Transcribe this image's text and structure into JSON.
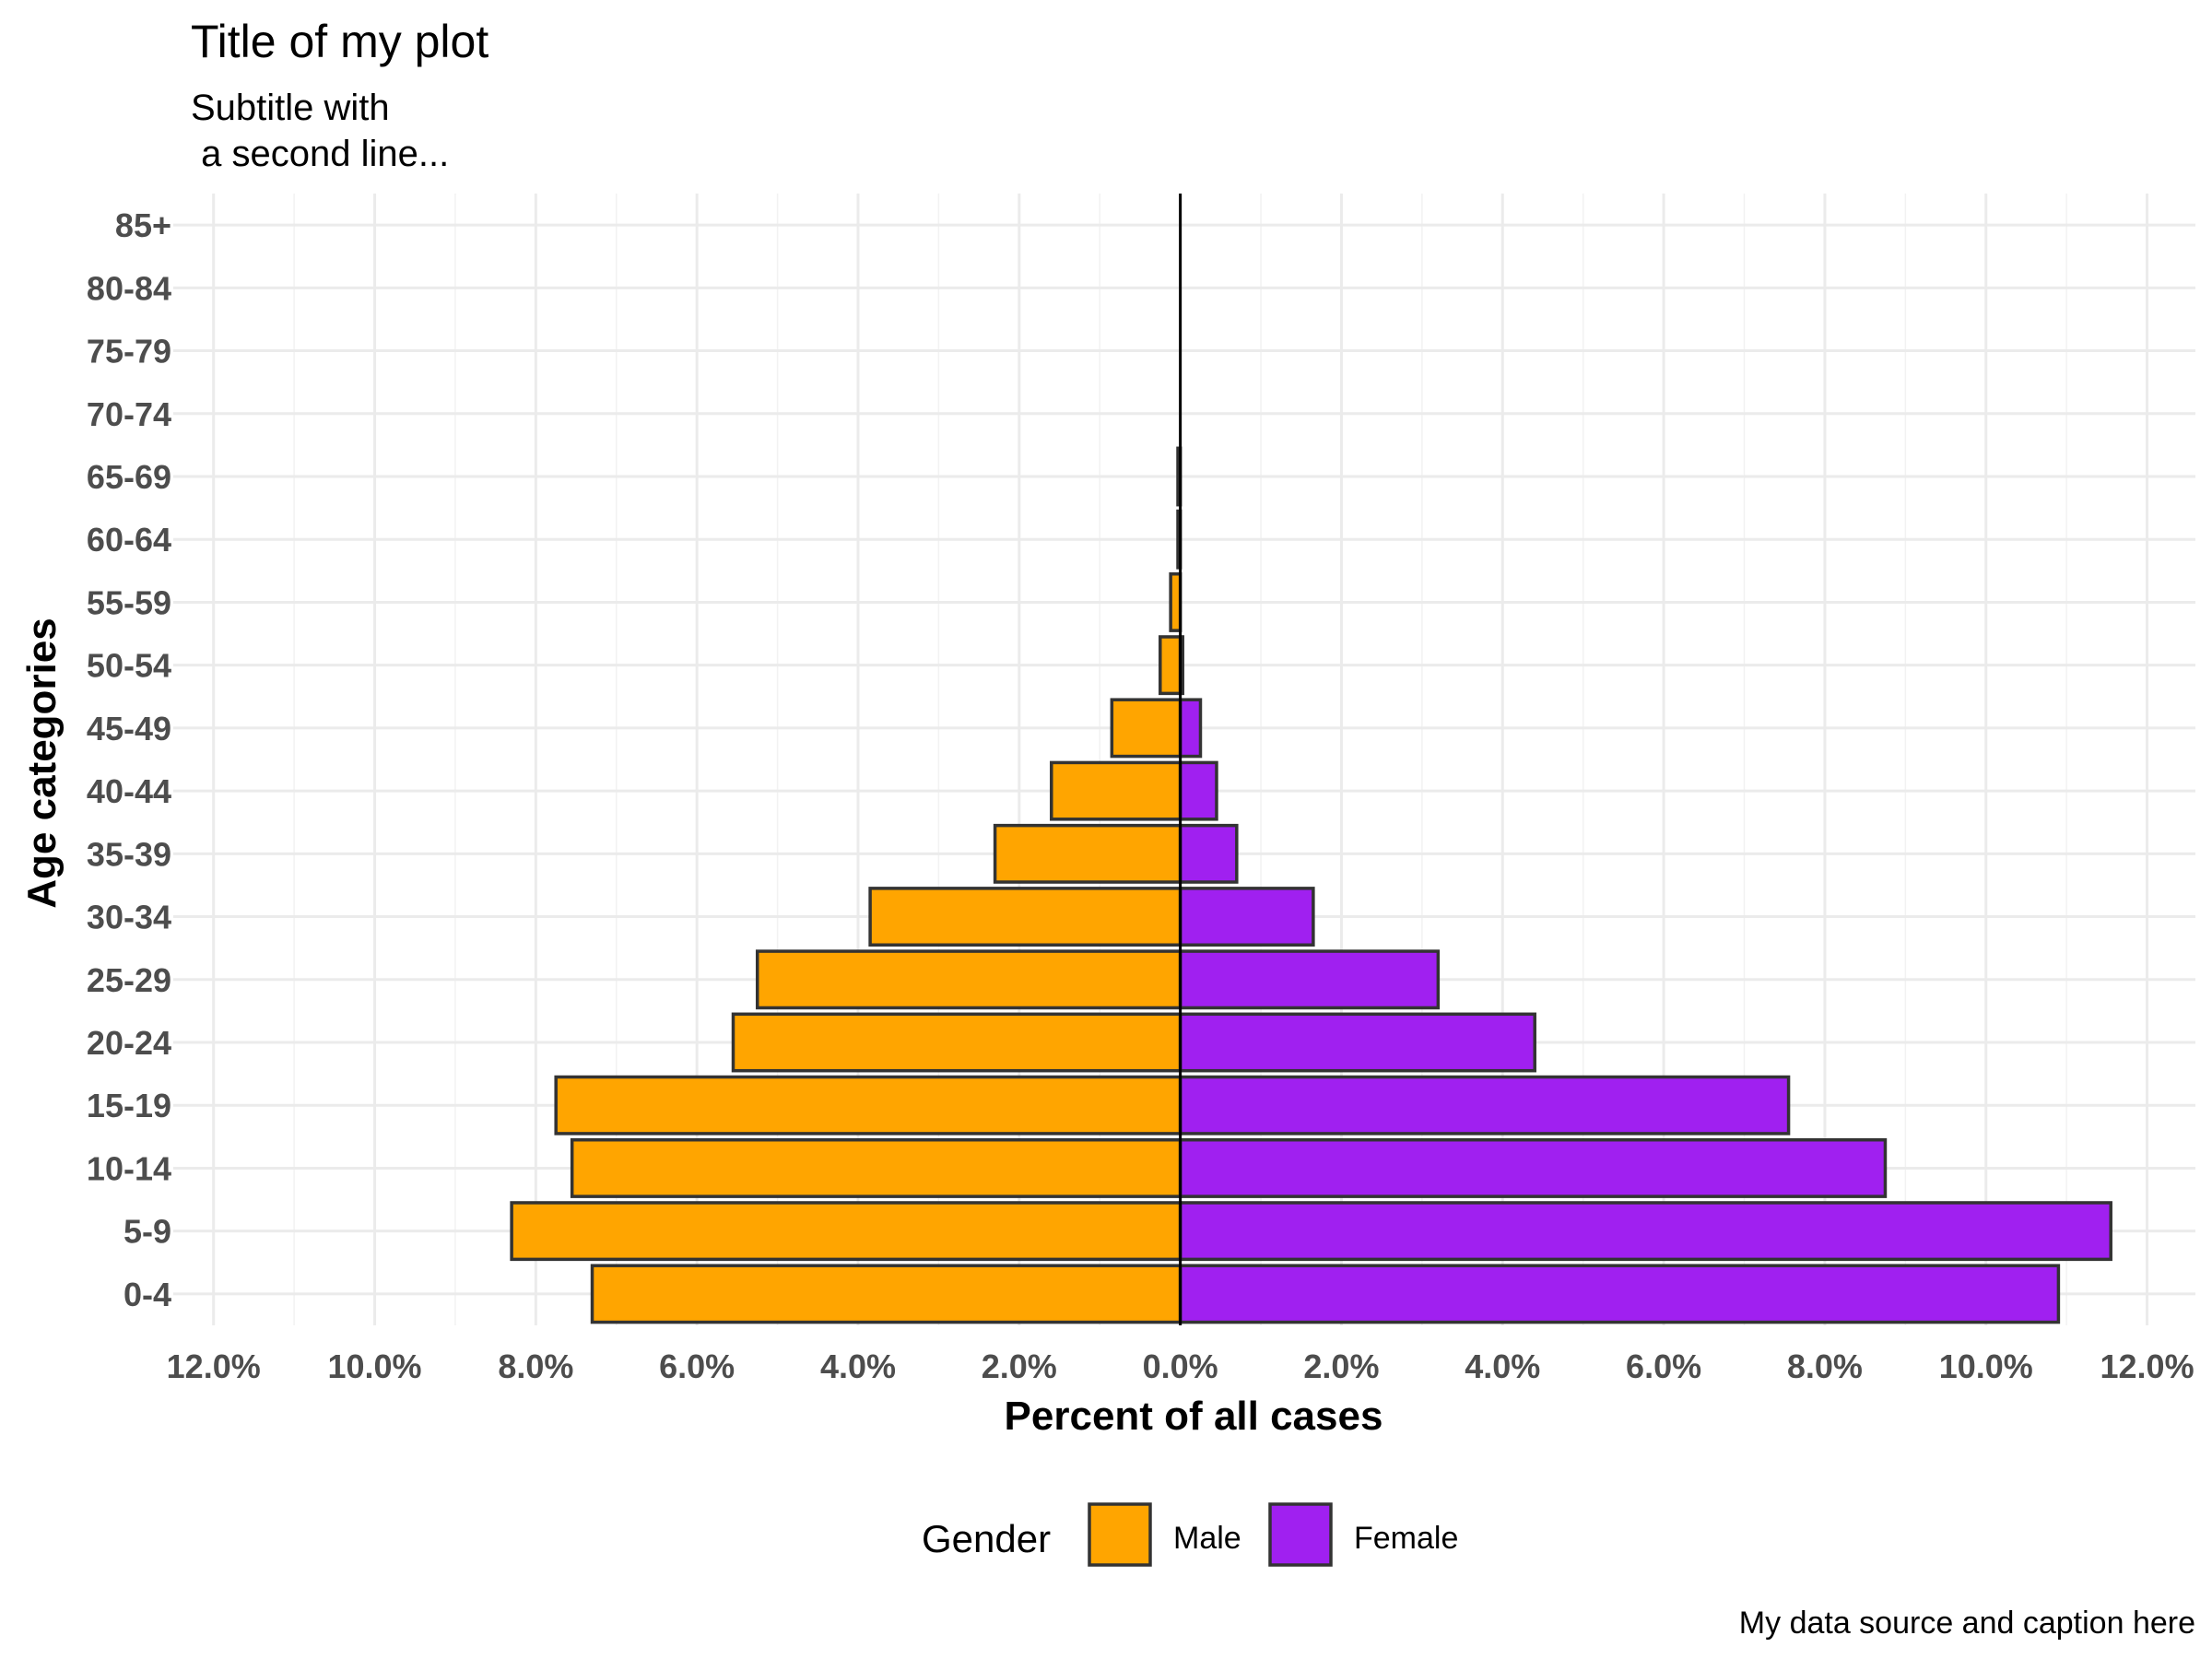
{
  "chart_data": {
    "type": "bar",
    "orientation": "horizontal",
    "layout": "population-pyramid",
    "title": "Title of my plot",
    "subtitle": [
      "Subtitle with",
      " a second line..."
    ],
    "caption": "My data source and caption here",
    "xlabel": "Percent of all cases",
    "ylabel": "Age categories",
    "xlim": [
      -12.5,
      12.6
    ],
    "xticks": [
      -12,
      -10,
      -8,
      -6,
      -4,
      -2,
      0,
      2,
      4,
      6,
      8,
      10,
      12
    ],
    "xtick_labels": [
      "12.0%",
      "10.0%",
      "8.0%",
      "6.0%",
      "4.0%",
      "2.0%",
      "0.0%",
      "2.0%",
      "4.0%",
      "6.0%",
      "8.0%",
      "10.0%",
      "12.0%"
    ],
    "categories": [
      "0-4",
      "5-9",
      "10-14",
      "15-19",
      "20-24",
      "25-29",
      "30-34",
      "35-39",
      "40-44",
      "45-49",
      "50-54",
      "55-59",
      "60-64",
      "65-69",
      "70-74",
      "75-79",
      "80-84",
      "85+"
    ],
    "series": [
      {
        "name": "Male",
        "color": "#FFA500",
        "values": [
          7.3,
          8.3,
          7.55,
          7.75,
          5.55,
          5.25,
          3.85,
          2.3,
          1.6,
          0.85,
          0.25,
          0.12,
          0.03,
          0.03,
          0,
          0,
          0,
          0
        ]
      },
      {
        "name": "Female",
        "color": "#A020F0",
        "values": [
          10.9,
          11.55,
          8.75,
          7.55,
          4.4,
          3.2,
          1.65,
          0.7,
          0.45,
          0.25,
          0.03,
          0,
          0,
          0,
          0,
          0,
          0,
          0
        ]
      }
    ],
    "legend": {
      "title": "Gender",
      "position": "bottom"
    },
    "grid": true
  }
}
